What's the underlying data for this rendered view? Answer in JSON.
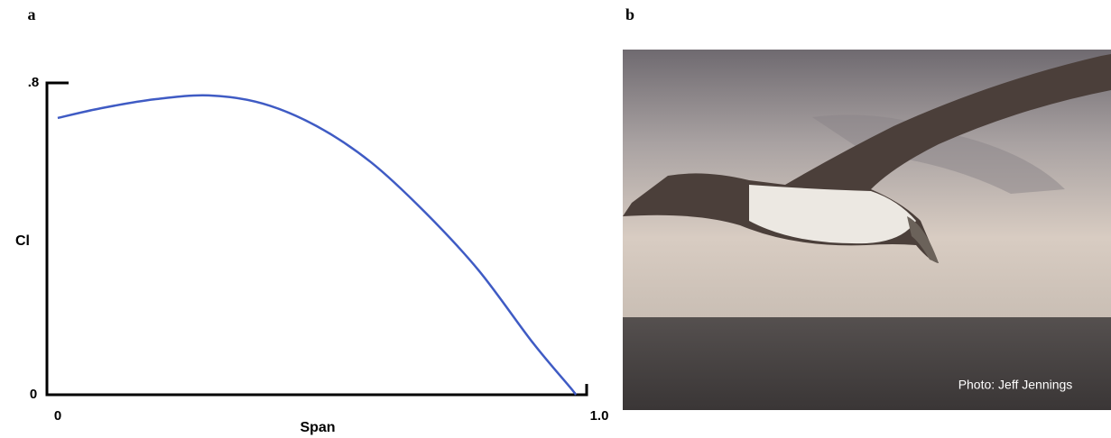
{
  "panel_labels": [
    "a",
    "b"
  ],
  "chart_data": {
    "type": "line",
    "x_label": "Span",
    "y_label": "Cl",
    "x": [
      0.02,
      0.1,
      0.2,
      0.3,
      0.4,
      0.5,
      0.6,
      0.7,
      0.8,
      0.9,
      0.97,
      0.98
    ],
    "series": [
      {
        "name": "Cl",
        "color": "#3f5bc4",
        "values": [
          0.71,
          0.735,
          0.758,
          0.768,
          0.747,
          0.689,
          0.597,
          0.469,
          0.319,
          0.134,
          0.018,
          0
        ]
      }
    ],
    "xlim": [
      0,
      1
    ],
    "ylim": [
      0,
      0.8
    ],
    "xticks": [
      0,
      {
        "value": 1,
        "label": "1.0"
      }
    ],
    "yticks": [
      0,
      {
        "value": 0.8,
        "label": ".8"
      }
    ],
    "grid": false
  },
  "photo": {
    "credit": "Photo: Jeff Jennings"
  }
}
